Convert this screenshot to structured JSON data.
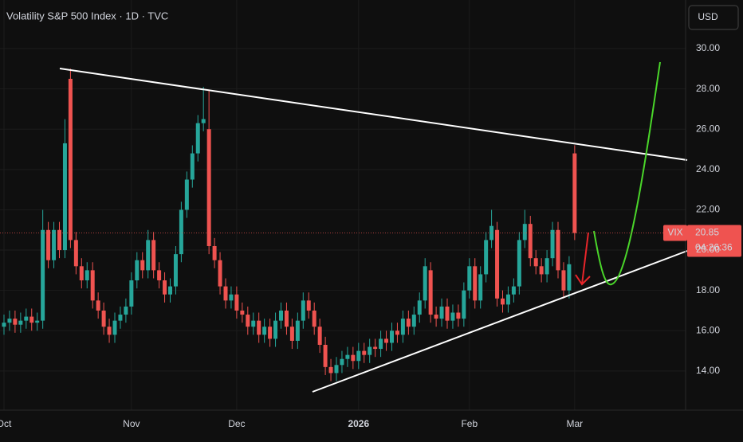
{
  "chart_data": {
    "type": "candlestick",
    "title": "Volatility S&P 500 Index · 1D · TVC",
    "currency": "USD",
    "symbol": "VIX",
    "countdown": "04:26:36",
    "last_label": "20.85",
    "up_color": "#26a69a",
    "down_color": "#ef5350",
    "ylim": [
      12.06,
      32.41
    ],
    "yticks": [
      {
        "value": 14,
        "label": "14.00"
      },
      {
        "value": 16,
        "label": "16.00"
      },
      {
        "value": 18,
        "label": "18.00"
      },
      {
        "value": 20,
        "label": "20.00"
      },
      {
        "value": 22,
        "label": "22.00"
      },
      {
        "value": 24,
        "label": "24.00"
      },
      {
        "value": 26,
        "label": "26.00"
      },
      {
        "value": 28,
        "label": "28.00"
      },
      {
        "value": 30,
        "label": "30.00"
      }
    ],
    "grid": true,
    "categories": [
      "Oct",
      null,
      null,
      null,
      null,
      null,
      null,
      null,
      null,
      null,
      null,
      null,
      null,
      null,
      null,
      null,
      null,
      null,
      null,
      null,
      null,
      null,
      null,
      "Nov",
      null,
      null,
      null,
      null,
      null,
      null,
      null,
      null,
      null,
      null,
      null,
      null,
      null,
      null,
      null,
      null,
      null,
      null,
      "Dec",
      null,
      null,
      null,
      null,
      null,
      null,
      null,
      null,
      null,
      null,
      null,
      null,
      null,
      null,
      null,
      null,
      null,
      null,
      null,
      null,
      null,
      "2026",
      null,
      null,
      null,
      null,
      null,
      null,
      null,
      null,
      null,
      null,
      null,
      null,
      null,
      null,
      null,
      null,
      null,
      null,
      null,
      "Feb",
      null,
      null,
      null,
      null,
      null,
      null,
      null,
      null,
      null,
      null,
      null,
      null,
      null,
      null,
      null,
      null,
      null,
      null,
      "Mar"
    ],
    "open": [
      16.2,
      16.4,
      16.6,
      16.3,
      16.5,
      16.7,
      16.4,
      16.5,
      21.0,
      19.5,
      21.0,
      20.0,
      28.5,
      20.5,
      19.2,
      18.5,
      19.0,
      17.5,
      17.0,
      16.2,
      15.8,
      16.5,
      16.8,
      17.2,
      18.5,
      19.5,
      19.0,
      20.5,
      19.0,
      18.5,
      17.8,
      18.2,
      19.8,
      22.0,
      23.5,
      24.8,
      26.3,
      26.0,
      20.2,
      19.5,
      18.2,
      17.5,
      17.8,
      17.0,
      16.8,
      16.2,
      16.5,
      15.8,
      16.2,
      15.6,
      16.5,
      17.0,
      16.2,
      15.5,
      16.5,
      17.5,
      17.0,
      16.2,
      15.3,
      14.2,
      13.9,
      14.3,
      14.6,
      14.8,
      14.5,
      15.0,
      14.8,
      15.2,
      15.1,
      15.6,
      15.4,
      16.0,
      15.8,
      16.6,
      16.2,
      16.8,
      17.5,
      19.0,
      16.8,
      16.6,
      17.2,
      16.5,
      16.9,
      16.6,
      18.0,
      19.2,
      17.5,
      18.8,
      20.5,
      21.0,
      17.6,
      17.3,
      17.8,
      18.2,
      20.5,
      21.3,
      19.6,
      19.2,
      18.8,
      19.6,
      21.0,
      19.0,
      18.0,
      24.8
    ],
    "high": [
      16.8,
      17.0,
      17.0,
      16.9,
      17.1,
      17.1,
      16.9,
      22.0,
      21.4,
      21.4,
      21.4,
      26.5,
      29.0,
      20.9,
      19.6,
      19.4,
      19.4,
      17.9,
      17.4,
      16.6,
      16.9,
      17.2,
      17.6,
      18.9,
      19.9,
      19.9,
      21.0,
      20.9,
      19.4,
      18.9,
      18.6,
      20.2,
      22.4,
      23.9,
      25.2,
      26.7,
      28.1,
      27.9,
      20.6,
      19.9,
      18.6,
      18.2,
      18.2,
      17.4,
      17.2,
      16.9,
      16.9,
      16.6,
      16.6,
      16.9,
      17.4,
      17.4,
      16.6,
      16.9,
      17.9,
      17.9,
      17.4,
      16.6,
      15.7,
      14.6,
      14.7,
      15.0,
      15.2,
      15.2,
      15.4,
      15.4,
      15.6,
      15.6,
      16.0,
      16.0,
      16.4,
      16.4,
      17.0,
      17.0,
      17.2,
      17.9,
      19.6,
      19.4,
      17.2,
      17.6,
      17.6,
      17.3,
      17.3,
      18.4,
      19.6,
      19.6,
      19.2,
      20.9,
      22.0,
      21.4,
      18.0,
      18.2,
      18.6,
      20.9,
      22.0,
      21.7,
      20.0,
      19.6,
      20.0,
      21.4,
      21.4,
      19.4,
      19.7,
      25.2
    ],
    "low": [
      15.8,
      16.0,
      15.9,
      15.9,
      16.1,
      16.0,
      16.0,
      16.1,
      19.1,
      19.1,
      19.6,
      19.6,
      20.1,
      18.8,
      18.1,
      18.1,
      17.1,
      16.6,
      15.8,
      15.4,
      15.4,
      16.1,
      16.4,
      16.8,
      18.1,
      18.6,
      18.6,
      18.6,
      18.1,
      17.4,
      17.4,
      17.8,
      19.4,
      21.6,
      23.1,
      24.4,
      25.9,
      19.8,
      19.1,
      17.8,
      17.1,
      17.1,
      16.6,
      16.4,
      15.8,
      15.8,
      15.4,
      15.4,
      15.2,
      15.2,
      16.1,
      15.8,
      15.1,
      15.1,
      16.1,
      16.6,
      15.8,
      14.9,
      13.8,
      13.5,
      13.5,
      13.9,
      14.2,
      14.1,
      14.1,
      14.4,
      14.4,
      14.7,
      14.7,
      15.0,
      15.0,
      15.4,
      15.4,
      15.8,
      15.8,
      16.4,
      17.1,
      16.4,
      16.2,
      16.2,
      16.1,
      16.1,
      16.2,
      16.2,
      17.6,
      17.1,
      17.1,
      18.4,
      20.1,
      17.2,
      16.9,
      16.9,
      17.4,
      17.8,
      20.1,
      19.2,
      18.8,
      18.4,
      18.4,
      19.2,
      18.6,
      17.6,
      17.6,
      20.5
    ],
    "close": [
      16.4,
      16.6,
      16.3,
      16.5,
      16.7,
      16.4,
      16.5,
      21.0,
      19.5,
      21.0,
      20.0,
      25.3,
      20.5,
      19.2,
      18.5,
      19.0,
      17.5,
      17.0,
      16.2,
      15.8,
      16.5,
      16.8,
      17.2,
      18.5,
      19.5,
      19.0,
      20.5,
      19.0,
      18.5,
      17.8,
      18.2,
      19.8,
      22.0,
      23.5,
      24.8,
      26.3,
      26.5,
      20.2,
      19.5,
      18.2,
      17.5,
      17.8,
      17.0,
      16.8,
      16.2,
      16.5,
      15.8,
      16.2,
      15.6,
      16.5,
      17.0,
      16.2,
      15.5,
      16.5,
      17.5,
      17.0,
      16.2,
      15.3,
      14.2,
      13.9,
      14.3,
      14.6,
      14.8,
      14.5,
      15.0,
      14.8,
      15.2,
      15.1,
      15.6,
      15.4,
      16.0,
      15.8,
      16.6,
      16.2,
      16.8,
      17.5,
      19.2,
      16.8,
      16.6,
      17.2,
      16.5,
      16.9,
      16.6,
      18.0,
      19.2,
      17.5,
      18.8,
      20.5,
      21.2,
      17.6,
      17.3,
      17.8,
      18.2,
      20.5,
      21.3,
      19.6,
      19.2,
      18.8,
      19.6,
      21.0,
      19.0,
      18.0,
      19.3,
      20.85
    ]
  }
}
